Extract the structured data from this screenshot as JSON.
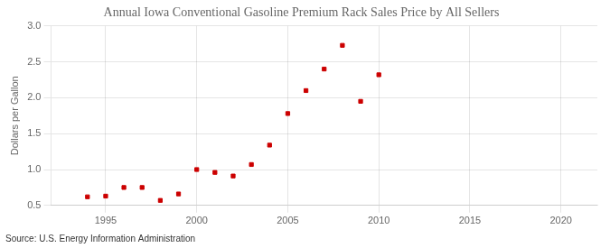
{
  "chart_data": {
    "type": "scatter",
    "title": "Annual Iowa Conventional Gasoline Premium Rack Sales Price by All Sellers",
    "ylabel": "Dollars per Gallon",
    "source": "Source: U.S. Energy Information Administration",
    "x": [
      1994,
      1995,
      1996,
      1997,
      1998,
      1999,
      2000,
      2001,
      2002,
      2003,
      2004,
      2005,
      2006,
      2007,
      2008,
      2009,
      2010
    ],
    "values": [
      0.62,
      0.63,
      0.75,
      0.75,
      0.57,
      0.66,
      1.0,
      0.96,
      0.91,
      1.07,
      1.34,
      1.78,
      2.1,
      2.4,
      2.73,
      1.95,
      2.32
    ],
    "color": "#cc0000",
    "marker": "square",
    "xlim": [
      1992,
      2022
    ],
    "ylim": [
      0.5,
      3.0
    ],
    "xticks": [
      1995,
      2000,
      2005,
      2010,
      2015,
      2020
    ],
    "yticks": [
      0.5,
      {
        "value": 1.0,
        "label": "1.0"
      },
      1.5,
      {
        "value": 2.0,
        "label": "2.0"
      },
      2.5,
      {
        "value": 3.0,
        "label": "3.0"
      }
    ],
    "grid": true
  }
}
